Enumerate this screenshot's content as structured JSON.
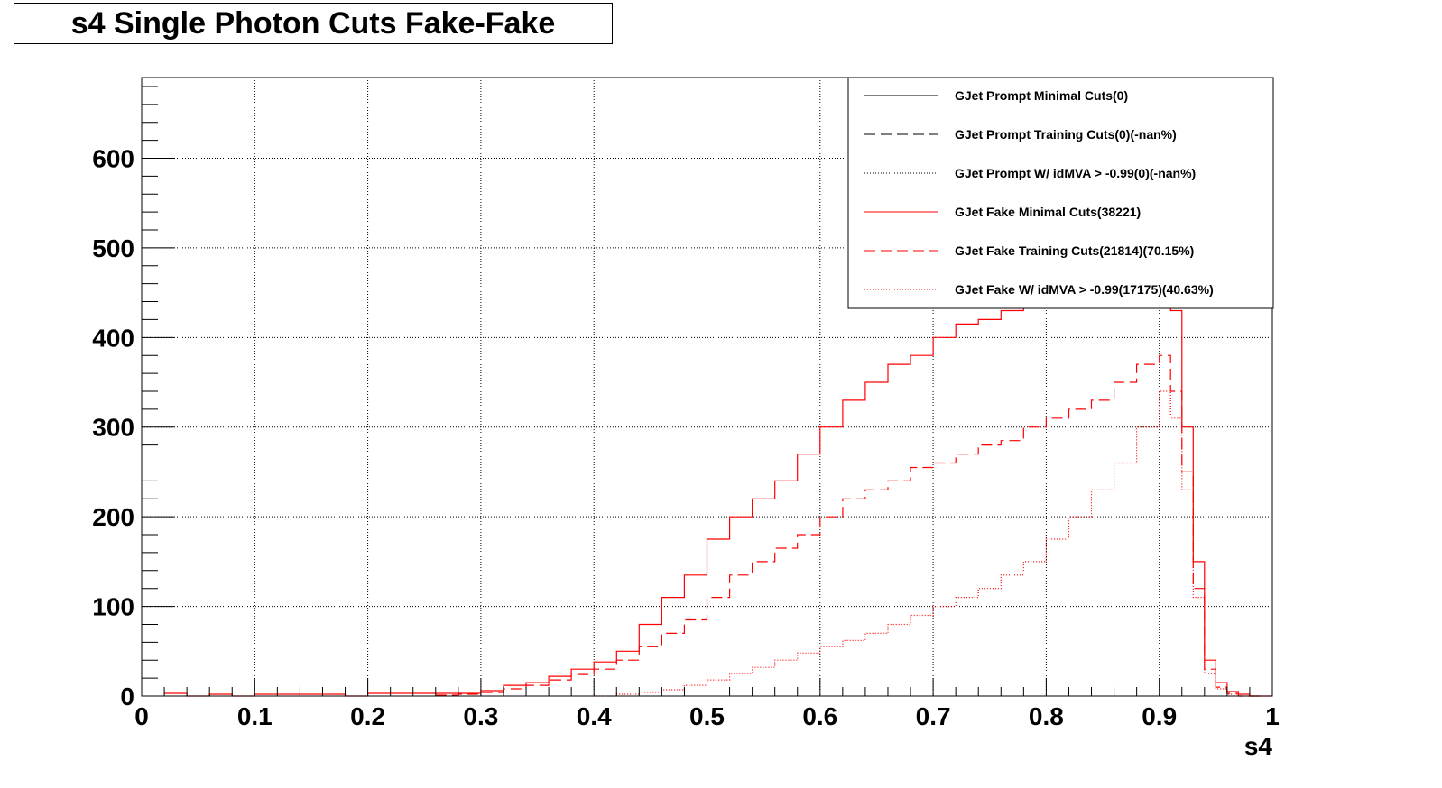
{
  "title": "s4 Single Photon Cuts Fake-Fake",
  "chart_data": {
    "type": "histogram",
    "xlabel": "s4",
    "ylabel": "",
    "xlim": [
      0,
      1
    ],
    "ylim": [
      0,
      690
    ],
    "grid": true,
    "legend_placement": "top-right",
    "x_ticks": [
      "0",
      "0.1",
      "0.2",
      "0.3",
      "0.4",
      "0.5",
      "0.6",
      "0.7",
      "0.8",
      "0.9",
      "1"
    ],
    "y_ticks": [
      "0",
      "100",
      "200",
      "300",
      "400",
      "500",
      "600"
    ],
    "series": [
      {
        "name": "GJet Prompt Minimal Cuts(0)",
        "color": "#000000",
        "style": "solid",
        "points": []
      },
      {
        "name": "GJet Prompt Training Cuts(0)(-nan%)",
        "color": "#000000",
        "style": "dashed",
        "points": []
      },
      {
        "name": "GJet Prompt W/ idMVA > -0.99(0)(-nan%)",
        "color": "#000000",
        "style": "dotted",
        "points": []
      },
      {
        "name": "GJet Fake Minimal Cuts(38221)",
        "color": "#ff0000",
        "style": "solid",
        "points": [
          [
            0.02,
            3
          ],
          [
            0.04,
            0
          ],
          [
            0.06,
            2
          ],
          [
            0.08,
            0
          ],
          [
            0.1,
            2
          ],
          [
            0.12,
            2
          ],
          [
            0.14,
            2
          ],
          [
            0.16,
            2
          ],
          [
            0.18,
            0
          ],
          [
            0.2,
            3
          ],
          [
            0.22,
            3
          ],
          [
            0.24,
            3
          ],
          [
            0.26,
            3
          ],
          [
            0.28,
            3
          ],
          [
            0.3,
            6
          ],
          [
            0.32,
            12
          ],
          [
            0.34,
            15
          ],
          [
            0.36,
            22
          ],
          [
            0.38,
            30
          ],
          [
            0.4,
            38
          ],
          [
            0.42,
            50
          ],
          [
            0.44,
            80
          ],
          [
            0.46,
            110
          ],
          [
            0.48,
            135
          ],
          [
            0.5,
            175
          ],
          [
            0.52,
            200
          ],
          [
            0.54,
            220
          ],
          [
            0.56,
            240
          ],
          [
            0.58,
            270
          ],
          [
            0.6,
            300
          ],
          [
            0.62,
            330
          ],
          [
            0.64,
            350
          ],
          [
            0.66,
            370
          ],
          [
            0.68,
            380
          ],
          [
            0.7,
            400
          ],
          [
            0.72,
            415
          ],
          [
            0.74,
            420
          ],
          [
            0.76,
            430
          ],
          [
            0.78,
            440
          ],
          [
            0.8,
            450
          ],
          [
            0.82,
            460
          ],
          [
            0.84,
            470
          ],
          [
            0.86,
            480
          ],
          [
            0.88,
            495
          ],
          [
            0.9,
            500
          ],
          [
            0.91,
            430
          ],
          [
            0.92,
            300
          ],
          [
            0.93,
            150
          ],
          [
            0.94,
            40
          ],
          [
            0.95,
            15
          ],
          [
            0.96,
            5
          ],
          [
            0.97,
            2
          ],
          [
            0.98,
            0
          ]
        ]
      },
      {
        "name": "GJet Fake Training Cuts(21814)(70.15%)",
        "color": "#ff0000",
        "style": "dashed",
        "points": [
          [
            0.26,
            1
          ],
          [
            0.28,
            2
          ],
          [
            0.3,
            4
          ],
          [
            0.32,
            8
          ],
          [
            0.34,
            12
          ],
          [
            0.36,
            18
          ],
          [
            0.38,
            24
          ],
          [
            0.4,
            30
          ],
          [
            0.42,
            40
          ],
          [
            0.44,
            55
          ],
          [
            0.46,
            70
          ],
          [
            0.48,
            85
          ],
          [
            0.5,
            110
          ],
          [
            0.52,
            135
          ],
          [
            0.54,
            150
          ],
          [
            0.56,
            165
          ],
          [
            0.58,
            180
          ],
          [
            0.6,
            200
          ],
          [
            0.62,
            220
          ],
          [
            0.64,
            230
          ],
          [
            0.66,
            240
          ],
          [
            0.68,
            255
          ],
          [
            0.7,
            260
          ],
          [
            0.72,
            270
          ],
          [
            0.74,
            280
          ],
          [
            0.76,
            285
          ],
          [
            0.78,
            300
          ],
          [
            0.8,
            310
          ],
          [
            0.82,
            320
          ],
          [
            0.84,
            330
          ],
          [
            0.86,
            350
          ],
          [
            0.88,
            370
          ],
          [
            0.9,
            380
          ],
          [
            0.91,
            340
          ],
          [
            0.92,
            250
          ],
          [
            0.93,
            120
          ],
          [
            0.94,
            30
          ],
          [
            0.95,
            10
          ],
          [
            0.96,
            3
          ],
          [
            0.97,
            0
          ]
        ]
      },
      {
        "name": "GJet Fake W/ idMVA > -0.99(17175)(40.63%)",
        "color": "#ff0000",
        "style": "dotted",
        "points": [
          [
            0.4,
            0
          ],
          [
            0.42,
            2
          ],
          [
            0.44,
            4
          ],
          [
            0.46,
            7
          ],
          [
            0.48,
            12
          ],
          [
            0.5,
            18
          ],
          [
            0.52,
            25
          ],
          [
            0.54,
            32
          ],
          [
            0.56,
            40
          ],
          [
            0.58,
            48
          ],
          [
            0.6,
            55
          ],
          [
            0.62,
            62
          ],
          [
            0.64,
            70
          ],
          [
            0.66,
            80
          ],
          [
            0.68,
            90
          ],
          [
            0.7,
            100
          ],
          [
            0.72,
            110
          ],
          [
            0.74,
            120
          ],
          [
            0.76,
            135
          ],
          [
            0.78,
            150
          ],
          [
            0.8,
            175
          ],
          [
            0.82,
            200
          ],
          [
            0.84,
            230
          ],
          [
            0.86,
            260
          ],
          [
            0.88,
            300
          ],
          [
            0.9,
            340
          ],
          [
            0.91,
            310
          ],
          [
            0.92,
            230
          ],
          [
            0.93,
            110
          ],
          [
            0.94,
            25
          ],
          [
            0.95,
            8
          ],
          [
            0.96,
            2
          ],
          [
            0.97,
            0
          ]
        ]
      }
    ]
  }
}
